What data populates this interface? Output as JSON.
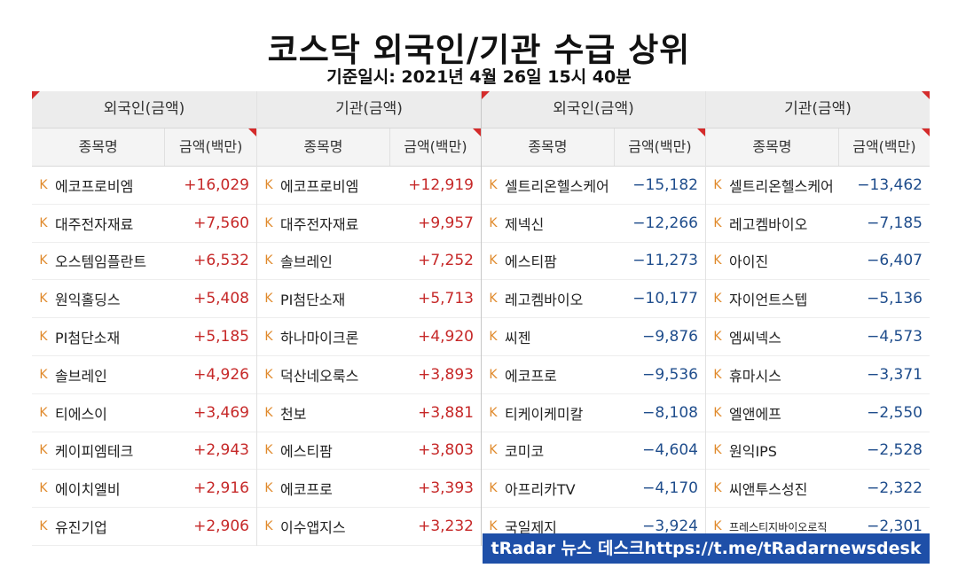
{
  "title": "코스닥 외국인/기관 수급 상위",
  "subtitle": "기준일시: 2021년 4월 26일 15시 40분",
  "brand_icon": "K",
  "colors": {
    "positive": "#c62828",
    "negative": "#1f4d8c",
    "k_icon": "#e0892b",
    "footer_bg": "#1e4fa8"
  },
  "footer": "tRadar 뉴스 데스크https://t.me/tRadarnewsdesk",
  "panels": [
    {
      "group": "외국인(금액)",
      "col_name": "종목명",
      "col_amt": "금액(백만)",
      "rows": [
        {
          "name": "에코프로비엠",
          "amt": "+16,029"
        },
        {
          "name": "대주전자재료",
          "amt": "+7,560"
        },
        {
          "name": "오스템임플란트",
          "amt": "+6,532"
        },
        {
          "name": "원익홀딩스",
          "amt": "+5,408"
        },
        {
          "name": "PI첨단소재",
          "amt": "+5,185"
        },
        {
          "name": "솔브레인",
          "amt": "+4,926"
        },
        {
          "name": "티에스이",
          "amt": "+3,469"
        },
        {
          "name": "케이피엠테크",
          "amt": "+2,943"
        },
        {
          "name": "에이치엘비",
          "amt": "+2,916"
        },
        {
          "name": "유진기업",
          "amt": "+2,906"
        }
      ]
    },
    {
      "group": "기관(금액)",
      "col_name": "종목명",
      "col_amt": "금액(백만)",
      "rows": [
        {
          "name": "에코프로비엠",
          "amt": "+12,919"
        },
        {
          "name": "대주전자재료",
          "amt": "+9,957"
        },
        {
          "name": "솔브레인",
          "amt": "+7,252"
        },
        {
          "name": "PI첨단소재",
          "amt": "+5,713"
        },
        {
          "name": "하나마이크론",
          "amt": "+4,920"
        },
        {
          "name": "덕산네오룩스",
          "amt": "+3,893"
        },
        {
          "name": "천보",
          "amt": "+3,881"
        },
        {
          "name": "에스티팜",
          "amt": "+3,803"
        },
        {
          "name": "에코프로",
          "amt": "+3,393"
        },
        {
          "name": "이수앱지스",
          "amt": "+3,232"
        }
      ]
    },
    {
      "group": "외국인(금액)",
      "col_name": "종목명",
      "col_amt": "금액(백만)",
      "rows": [
        {
          "name": "셀트리온헬스케어",
          "amt": "−15,182"
        },
        {
          "name": "제넥신",
          "amt": "−12,266"
        },
        {
          "name": "에스티팜",
          "amt": "−11,273"
        },
        {
          "name": "레고켐바이오",
          "amt": "−10,177"
        },
        {
          "name": "씨젠",
          "amt": "−9,876"
        },
        {
          "name": "에코프로",
          "amt": "−9,536"
        },
        {
          "name": "티케이케미칼",
          "amt": "−8,108"
        },
        {
          "name": "코미코",
          "amt": "−4,604"
        },
        {
          "name": "아프리카TV",
          "amt": "−4,170"
        },
        {
          "name": "국일제지",
          "amt": "−3,924"
        }
      ]
    },
    {
      "group": "기관(금액)",
      "col_name": "종목명",
      "col_amt": "금액(백만)",
      "rows": [
        {
          "name": "셀트리온헬스케어",
          "amt": "−13,462"
        },
        {
          "name": "레고켐바이오",
          "amt": "−7,185"
        },
        {
          "name": "아이진",
          "amt": "−6,407"
        },
        {
          "name": "자이언트스텝",
          "amt": "−5,136"
        },
        {
          "name": "엠씨넥스",
          "amt": "−4,573"
        },
        {
          "name": "휴마시스",
          "amt": "−3,371"
        },
        {
          "name": "엘앤에프",
          "amt": "−2,550"
        },
        {
          "name": "원익IPS",
          "amt": "−2,528"
        },
        {
          "name": "씨앤투스성진",
          "amt": "−2,322"
        },
        {
          "name": "프레스티지바이오로직",
          "amt": "−2,301"
        }
      ]
    }
  ]
}
